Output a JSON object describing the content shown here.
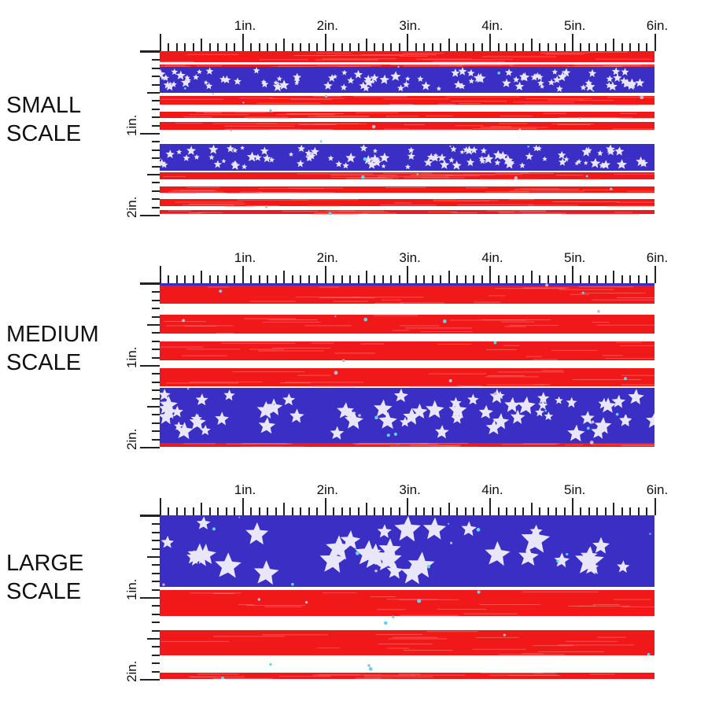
{
  "ruler": {
    "top_labels": [
      "1in.",
      "2in.",
      "3in.",
      "4in.",
      "5in.",
      "6in."
    ],
    "left_labels": [
      "1in.",
      "2in."
    ]
  },
  "colors": {
    "red": "#f01818",
    "blue": "#3a2ec4",
    "white": "#ffffff",
    "star": "#e8e6f8"
  },
  "panels": [
    {
      "name": "small",
      "label": [
        "SMALL",
        "SCALE"
      ],
      "bands": [
        [
          "r",
          0,
          14
        ],
        [
          "r",
          17,
          20
        ],
        [
          "b",
          20,
          53
        ],
        [
          "r",
          57,
          68
        ],
        [
          "r",
          77,
          85
        ],
        [
          "r",
          90,
          100
        ],
        [
          "b",
          118,
          152
        ],
        [
          "r",
          154,
          163
        ],
        [
          "r",
          172,
          180
        ],
        [
          "r",
          188,
          197
        ],
        [
          "r",
          202,
          207
        ]
      ],
      "star_size": 5
    },
    {
      "name": "medium",
      "label": [
        "MEDIUM",
        "SCALE"
      ],
      "bands": [
        [
          "b",
          0,
          3
        ],
        [
          "r",
          3,
          26
        ],
        [
          "r",
          40,
          64
        ],
        [
          "r",
          74,
          98
        ],
        [
          "r",
          108,
          131
        ],
        [
          "b",
          133,
          203
        ],
        [
          "r",
          203,
          208
        ]
      ],
      "star_size": 9
    },
    {
      "name": "large",
      "label": [
        "LARGE",
        "SCALE"
      ],
      "bands": [
        [
          "b",
          0,
          91
        ],
        [
          "r",
          95,
          128
        ],
        [
          "r",
          146,
          178
        ],
        [
          "r",
          200,
          209
        ]
      ],
      "star_size": 14
    }
  ]
}
